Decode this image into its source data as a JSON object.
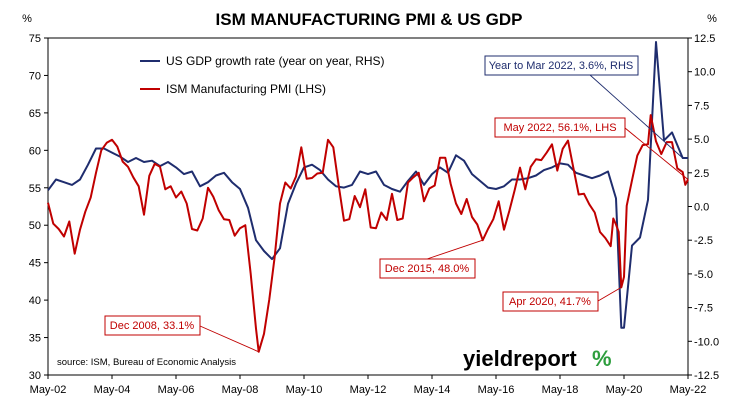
{
  "chart_data": {
    "type": "line",
    "title": "ISM MANUFACTURING PMI & US GDP",
    "left_axis": {
      "unit": "%",
      "ylim": [
        30,
        75
      ],
      "ticks": [
        "30",
        "35",
        "40",
        "45",
        "50",
        "55",
        "60",
        "65",
        "70",
        "75"
      ]
    },
    "right_axis": {
      "unit": "%",
      "ylim": [
        -12.5,
        12.5
      ],
      "ticks": [
        "-12.5",
        "-10.0",
        "-7.5",
        "-5.0",
        "-2.5",
        "0.0",
        "2.5",
        "5.0",
        "7.5",
        "10.0",
        "12.5"
      ]
    },
    "x_axis": {
      "range": [
        "May-02",
        "May-22"
      ],
      "ticks": [
        "May-02",
        "May-04",
        "May-06",
        "May-08",
        "May-10",
        "May-12",
        "May-14",
        "May-16",
        "May-18",
        "May-20",
        "May-22"
      ]
    },
    "grid": false,
    "legend": "top-left",
    "series": [
      {
        "name": "US GDP growth rate (year on year, RHS)",
        "axis": "right",
        "color": "#1f2d6e",
        "points": [
          [
            "2002-05",
            1.2
          ],
          [
            "2002-08",
            2.0
          ],
          [
            "2002-11",
            1.8
          ],
          [
            "2003-02",
            1.6
          ],
          [
            "2003-05",
            2.0
          ],
          [
            "2003-08",
            3.1
          ],
          [
            "2003-11",
            4.3
          ],
          [
            "2004-02",
            4.3
          ],
          [
            "2004-05",
            4.0
          ],
          [
            "2004-08",
            3.7
          ],
          [
            "2004-11",
            3.3
          ],
          [
            "2005-02",
            3.6
          ],
          [
            "2005-05",
            3.3
          ],
          [
            "2005-08",
            3.4
          ],
          [
            "2005-11",
            3.0
          ],
          [
            "2006-02",
            3.3
          ],
          [
            "2006-05",
            2.9
          ],
          [
            "2006-08",
            2.4
          ],
          [
            "2006-11",
            2.6
          ],
          [
            "2007-02",
            1.5
          ],
          [
            "2007-05",
            1.8
          ],
          [
            "2007-08",
            2.3
          ],
          [
            "2007-11",
            2.5
          ],
          [
            "2008-02",
            1.8
          ],
          [
            "2008-05",
            1.3
          ],
          [
            "2008-08",
            -0.1
          ],
          [
            "2008-11",
            -2.5
          ],
          [
            "2009-02",
            -3.3
          ],
          [
            "2009-05",
            -3.9
          ],
          [
            "2009-08",
            -3.1
          ],
          [
            "2009-11",
            0.2
          ],
          [
            "2010-02",
            1.7
          ],
          [
            "2010-05",
            2.9
          ],
          [
            "2010-08",
            3.1
          ],
          [
            "2010-11",
            2.7
          ],
          [
            "2011-02",
            2.0
          ],
          [
            "2011-05",
            1.5
          ],
          [
            "2011-08",
            1.4
          ],
          [
            "2011-11",
            1.6
          ],
          [
            "2012-02",
            2.6
          ],
          [
            "2012-05",
            2.4
          ],
          [
            "2012-08",
            2.6
          ],
          [
            "2012-11",
            1.6
          ],
          [
            "2013-02",
            1.3
          ],
          [
            "2013-05",
            1.1
          ],
          [
            "2013-08",
            1.9
          ],
          [
            "2013-11",
            2.6
          ],
          [
            "2014-02",
            1.6
          ],
          [
            "2014-05",
            2.4
          ],
          [
            "2014-08",
            2.9
          ],
          [
            "2014-11",
            2.5
          ],
          [
            "2015-02",
            3.8
          ],
          [
            "2015-05",
            3.4
          ],
          [
            "2015-08",
            2.4
          ],
          [
            "2015-11",
            1.9
          ],
          [
            "2016-02",
            1.4
          ],
          [
            "2016-05",
            1.3
          ],
          [
            "2016-08",
            1.5
          ],
          [
            "2016-11",
            2.0
          ],
          [
            "2017-02",
            2.0
          ],
          [
            "2017-05",
            2.1
          ],
          [
            "2017-08",
            2.3
          ],
          [
            "2017-11",
            2.7
          ],
          [
            "2018-02",
            2.9
          ],
          [
            "2018-05",
            3.2
          ],
          [
            "2018-08",
            3.1
          ],
          [
            "2018-11",
            2.5
          ],
          [
            "2019-02",
            2.3
          ],
          [
            "2019-05",
            2.1
          ],
          [
            "2019-08",
            2.3
          ],
          [
            "2019-11",
            2.6
          ],
          [
            "2020-02",
            0.6
          ],
          [
            "2020-04",
            -9.0
          ],
          [
            "2020-05",
            -9.0
          ],
          [
            "2020-08",
            -2.9
          ],
          [
            "2020-11",
            -2.3
          ],
          [
            "2021-02",
            0.5
          ],
          [
            "2021-05",
            12.2
          ],
          [
            "2021-08",
            4.9
          ],
          [
            "2021-11",
            5.5
          ],
          [
            "2022-03",
            3.6
          ],
          [
            "2022-05",
            3.6
          ]
        ]
      },
      {
        "name": "ISM Manufacturing PMI (LHS)",
        "axis": "left",
        "color": "#c00000",
        "points": [
          [
            "2002-05",
            53.0
          ],
          [
            "2002-07",
            50.2
          ],
          [
            "2002-09",
            49.5
          ],
          [
            "2002-11",
            48.5
          ],
          [
            "2003-01",
            50.5
          ],
          [
            "2003-03",
            46.2
          ],
          [
            "2003-05",
            49.4
          ],
          [
            "2003-07",
            51.8
          ],
          [
            "2003-09",
            53.7
          ],
          [
            "2003-11",
            57.0
          ],
          [
            "2004-01",
            60.0
          ],
          [
            "2004-03",
            61.0
          ],
          [
            "2004-05",
            61.4
          ],
          [
            "2004-07",
            60.5
          ],
          [
            "2004-09",
            58.5
          ],
          [
            "2004-11",
            57.8
          ],
          [
            "2005-01",
            56.4
          ],
          [
            "2005-03",
            55.2
          ],
          [
            "2005-05",
            51.4
          ],
          [
            "2005-07",
            56.6
          ],
          [
            "2005-09",
            58.2
          ],
          [
            "2005-11",
            57.8
          ],
          [
            "2006-01",
            54.8
          ],
          [
            "2006-03",
            55.2
          ],
          [
            "2006-05",
            53.7
          ],
          [
            "2006-07",
            54.5
          ],
          [
            "2006-09",
            52.9
          ],
          [
            "2006-11",
            49.5
          ],
          [
            "2007-01",
            49.3
          ],
          [
            "2007-03",
            50.9
          ],
          [
            "2007-05",
            55.0
          ],
          [
            "2007-07",
            53.8
          ],
          [
            "2007-09",
            52.0
          ],
          [
            "2007-11",
            50.8
          ],
          [
            "2008-01",
            50.7
          ],
          [
            "2008-03",
            48.6
          ],
          [
            "2008-05",
            49.6
          ],
          [
            "2008-07",
            50.0
          ],
          [
            "2008-09",
            43.5
          ],
          [
            "2008-11",
            36.2
          ],
          [
            "2008-12",
            33.1
          ],
          [
            "2009-02",
            35.5
          ],
          [
            "2009-04",
            40.1
          ],
          [
            "2009-06",
            45.8
          ],
          [
            "2009-08",
            52.9
          ],
          [
            "2009-10",
            55.7
          ],
          [
            "2009-12",
            54.9
          ],
          [
            "2010-02",
            56.5
          ],
          [
            "2010-04",
            60.4
          ],
          [
            "2010-06",
            56.2
          ],
          [
            "2010-08",
            56.3
          ],
          [
            "2010-10",
            56.9
          ],
          [
            "2010-12",
            57.0
          ],
          [
            "2011-02",
            61.4
          ],
          [
            "2011-04",
            60.4
          ],
          [
            "2011-06",
            55.3
          ],
          [
            "2011-08",
            50.6
          ],
          [
            "2011-10",
            50.8
          ],
          [
            "2011-12",
            53.9
          ],
          [
            "2012-02",
            52.4
          ],
          [
            "2012-04",
            54.8
          ],
          [
            "2012-06",
            49.7
          ],
          [
            "2012-08",
            49.6
          ],
          [
            "2012-10",
            51.7
          ],
          [
            "2012-12",
            50.7
          ],
          [
            "2013-02",
            54.2
          ],
          [
            "2013-04",
            50.7
          ],
          [
            "2013-06",
            50.9
          ],
          [
            "2013-08",
            55.7
          ],
          [
            "2013-10",
            56.4
          ],
          [
            "2013-12",
            57.0
          ],
          [
            "2014-02",
            53.2
          ],
          [
            "2014-04",
            54.9
          ],
          [
            "2014-06",
            55.3
          ],
          [
            "2014-08",
            59.0
          ],
          [
            "2014-10",
            59.0
          ],
          [
            "2014-12",
            55.5
          ],
          [
            "2015-02",
            52.9
          ],
          [
            "2015-04",
            51.5
          ],
          [
            "2015-06",
            53.5
          ],
          [
            "2015-08",
            51.1
          ],
          [
            "2015-10",
            50.1
          ],
          [
            "2015-12",
            48.0
          ],
          [
            "2016-02",
            49.5
          ],
          [
            "2016-04",
            50.8
          ],
          [
            "2016-06",
            53.2
          ],
          [
            "2016-08",
            49.4
          ],
          [
            "2016-10",
            51.9
          ],
          [
            "2016-12",
            54.7
          ],
          [
            "2017-02",
            57.7
          ],
          [
            "2017-04",
            54.8
          ],
          [
            "2017-06",
            57.8
          ],
          [
            "2017-08",
            58.8
          ],
          [
            "2017-10",
            58.7
          ],
          [
            "2017-12",
            59.7
          ],
          [
            "2018-02",
            60.8
          ],
          [
            "2018-04",
            57.3
          ],
          [
            "2018-06",
            60.2
          ],
          [
            "2018-08",
            61.3
          ],
          [
            "2018-10",
            57.7
          ],
          [
            "2018-12",
            54.1
          ],
          [
            "2019-02",
            54.2
          ],
          [
            "2019-04",
            52.8
          ],
          [
            "2019-06",
            51.7
          ],
          [
            "2019-08",
            49.1
          ],
          [
            "2019-10",
            48.3
          ],
          [
            "2019-12",
            47.2
          ],
          [
            "2020-01",
            50.9
          ],
          [
            "2020-02",
            50.1
          ],
          [
            "2020-03",
            49.1
          ],
          [
            "2020-04",
            41.7
          ],
          [
            "2020-05",
            43.1
          ],
          [
            "2020-06",
            52.6
          ],
          [
            "2020-08",
            56.0
          ],
          [
            "2020-10",
            59.3
          ],
          [
            "2020-12",
            60.7
          ],
          [
            "2021-02",
            60.8
          ],
          [
            "2021-03",
            64.7
          ],
          [
            "2021-05",
            61.2
          ],
          [
            "2021-07",
            59.5
          ],
          [
            "2021-09",
            61.1
          ],
          [
            "2021-11",
            61.1
          ],
          [
            "2022-01",
            57.6
          ],
          [
            "2022-03",
            57.1
          ],
          [
            "2022-04",
            55.4
          ],
          [
            "2022-05",
            56.1
          ]
        ]
      }
    ],
    "annotations": [
      {
        "text": "Year to Mar 2022, 3.6%, RHS",
        "color": "#1f2d6e",
        "target_series": 0,
        "target": [
          "2022-03",
          3.6
        ]
      },
      {
        "text": "May 2022, 56.1%, LHS",
        "color": "#c00000",
        "target_series": 1,
        "target": [
          "2022-05",
          56.1
        ]
      },
      {
        "text": "Dec 2015, 48.0%",
        "color": "#c00000",
        "target_series": 1,
        "target": [
          "2015-12",
          48.0
        ]
      },
      {
        "text": "Apr 2020, 41.7%",
        "color": "#c00000",
        "target_series": 1,
        "target": [
          "2020-04",
          41.7
        ]
      },
      {
        "text": "Dec 2008, 33.1%",
        "color": "#c00000",
        "target_series": 1,
        "target": [
          "2008-12",
          33.1
        ]
      }
    ],
    "source": "source: ISM, Bureau of Economic Analysis",
    "brand": {
      "text": "yieldreport",
      "symbol": "%"
    }
  }
}
